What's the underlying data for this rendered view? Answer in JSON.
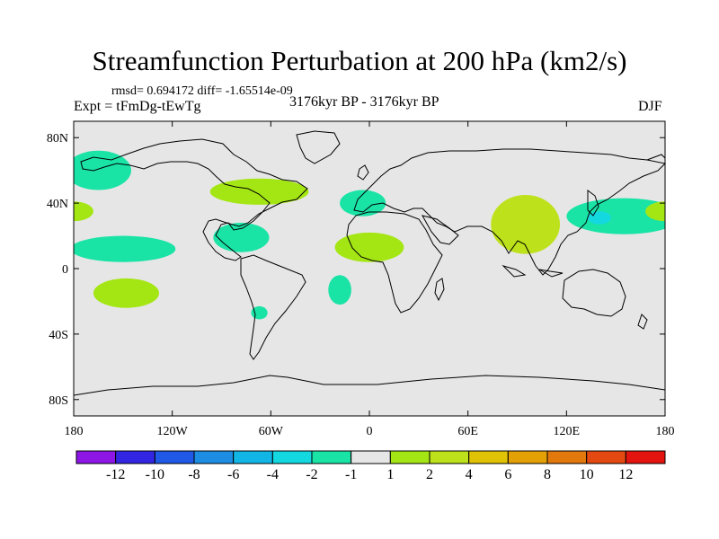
{
  "title": "Streamfunction Perturbation at 200 hPa (km2/s)",
  "subtitle_stats": "rmsd= 0.694172 diff= -1.65514e-09",
  "subtitle_expt": "Expt = tFmDg-tEwTg",
  "subtitle_period": "3176kyr BP - 3176kyr BP",
  "subtitle_season": "DJF",
  "map": {
    "projection": "cylindrical equidistant",
    "lon_range": [
      -180,
      180
    ],
    "lat_range": [
      -90,
      90
    ],
    "background_color": "#e6e6e6",
    "lon_ticks": [
      {
        "value": -180,
        "label": "180"
      },
      {
        "value": -120,
        "label": "120W"
      },
      {
        "value": -60,
        "label": "60W"
      },
      {
        "value": 0,
        "label": "0"
      },
      {
        "value": 60,
        "label": "60E"
      },
      {
        "value": 120,
        "label": "120E"
      },
      {
        "value": 180,
        "label": "180"
      }
    ],
    "lat_ticks": [
      {
        "value": 80,
        "label": "80N"
      },
      {
        "value": 40,
        "label": "40N"
      },
      {
        "value": 0,
        "label": "0"
      },
      {
        "value": -40,
        "label": "40S"
      },
      {
        "value": -80,
        "label": "80S"
      }
    ]
  },
  "chart_data": {
    "type": "heatmap",
    "variable": "Streamfunction Perturbation at 200 hPa",
    "units": "km2/s",
    "season": "DJF",
    "colorbar": {
      "colors": [
        "#8d15e6",
        "#3226e3",
        "#1f59e6",
        "#1d8de3",
        "#12b6e6",
        "#14d8e0",
        "#1ae3a6",
        "#e6e6e6",
        "#a4e614",
        "#bde11a",
        "#e0c307",
        "#e3a106",
        "#e3780c",
        "#e34910",
        "#e3140f"
      ],
      "labels": [
        "-12",
        "-10",
        "-8",
        "-6",
        "-4",
        "-2",
        "-1",
        "1",
        "2",
        "4",
        "6",
        "8",
        "10",
        "12"
      ]
    },
    "anomaly_regions": [
      {
        "name": "N Pacific west",
        "lon": -165,
        "lat": 60,
        "rx": 20,
        "ry": 12,
        "level": "-1 to -2"
      },
      {
        "name": "Dateline 35N",
        "lon": -180,
        "lat": 35,
        "rx": 12,
        "ry": 6,
        "level": "1 to 2"
      },
      {
        "name": "Tropical E Pacific",
        "lon": -150,
        "lat": 12,
        "rx": 32,
        "ry": 8,
        "level": "-1 to -2"
      },
      {
        "name": "S Pacific",
        "lon": -148,
        "lat": -15,
        "rx": 20,
        "ry": 9,
        "level": "1 to 2"
      },
      {
        "name": "Eastern N America",
        "lon": -67,
        "lat": 47,
        "rx": 30,
        "ry": 8,
        "level": "1 to 2"
      },
      {
        "name": "Caribbean",
        "lon": -78,
        "lat": 19,
        "rx": 17,
        "ry": 9,
        "level": "-1 to -2"
      },
      {
        "name": "S America",
        "lon": -67,
        "lat": -27,
        "rx": 5,
        "ry": 4,
        "level": "-1 to -2"
      },
      {
        "name": "N Atlantic",
        "lon": -4,
        "lat": 40,
        "rx": 14,
        "ry": 8,
        "level": "-1 to -2"
      },
      {
        "name": "N Africa",
        "lon": 0,
        "lat": 13,
        "rx": 21,
        "ry": 9,
        "level": "1 to 2"
      },
      {
        "name": "S Atlantic",
        "lon": -18,
        "lat": -13,
        "rx": 7,
        "ry": 9,
        "level": "-1 to -2"
      },
      {
        "name": "S Asia",
        "lon": 95,
        "lat": 27,
        "rx": 21,
        "ry": 18,
        "level": "2 to 4"
      },
      {
        "name": "NW Pacific",
        "lon": 155,
        "lat": 32,
        "rx": 35,
        "ry": 11,
        "level": "-1 to -2"
      },
      {
        "name": "Japan",
        "lon": 140,
        "lat": 31,
        "rx": 7,
        "ry": 4,
        "level": "-2 to -4"
      },
      {
        "name": "Dateline 35N east",
        "lon": 180,
        "lat": 35,
        "rx": 12,
        "ry": 6,
        "level": "1 to 2"
      }
    ]
  }
}
